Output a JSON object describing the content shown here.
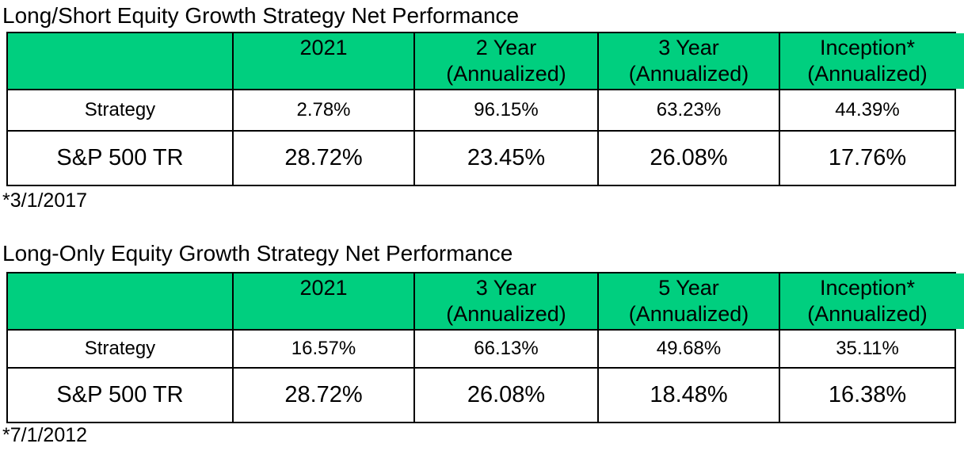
{
  "colors": {
    "header_green": "#00CF7F",
    "border": "#000000",
    "text": "#000000",
    "background": "#FFFFFF"
  },
  "chart_data": [
    {
      "type": "table",
      "title": "Long/Short Equity Growth Strategy Net Performance",
      "columns": [
        {
          "line1": "",
          "line2": ""
        },
        {
          "line1": "2021",
          "line2": ""
        },
        {
          "line1": "2 Year",
          "line2": "(Annualized)"
        },
        {
          "line1": "3 Year",
          "line2": "(Annualized)"
        },
        {
          "line1": "Inception*",
          "line2": "(Annualized)"
        }
      ],
      "rows": [
        {
          "label": "Strategy",
          "values": [
            "2.78%",
            "96.15%",
            "63.23%",
            "44.39%"
          ]
        },
        {
          "label": "S&P 500 TR",
          "values": [
            "28.72%",
            "23.45%",
            "26.08%",
            "17.76%"
          ]
        }
      ],
      "footnote": "*3/1/2017"
    },
    {
      "type": "table",
      "title": "Long-Only Equity Growth Strategy Net Performance",
      "columns": [
        {
          "line1": "",
          "line2": ""
        },
        {
          "line1": "2021",
          "line2": ""
        },
        {
          "line1": "3 Year",
          "line2": "(Annualized)"
        },
        {
          "line1": "5 Year",
          "line2": "(Annualized)"
        },
        {
          "line1": "Inception*",
          "line2": "(Annualized)"
        }
      ],
      "rows": [
        {
          "label": "Strategy",
          "values": [
            "16.57%",
            "66.13%",
            "49.68%",
            "35.11%"
          ]
        },
        {
          "label": "S&P 500 TR",
          "values": [
            "28.72%",
            "26.08%",
            "18.48%",
            "16.38%"
          ]
        }
      ],
      "footnote": "*7/1/2012"
    }
  ]
}
